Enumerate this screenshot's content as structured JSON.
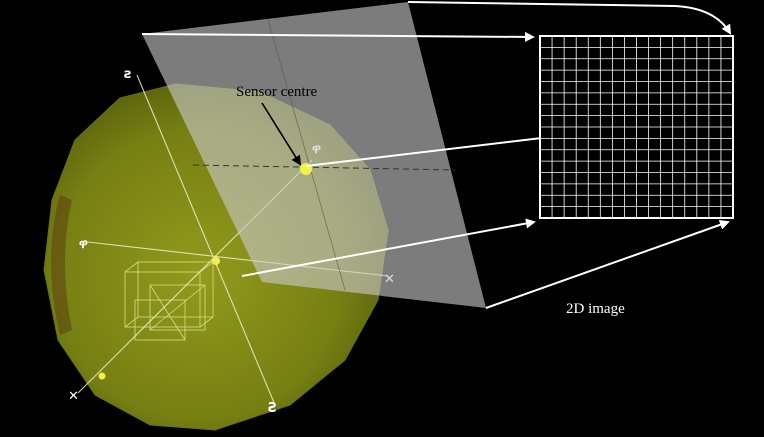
{
  "labels": {
    "sensor_centre": "Sensor centre",
    "image_2d": "2D image"
  },
  "colors": {
    "background": "#000000",
    "sphere": "#8a9418",
    "plane": "#c8c8c8",
    "grid": "#ffffff",
    "centre_dot": "#f2f24a"
  }
}
